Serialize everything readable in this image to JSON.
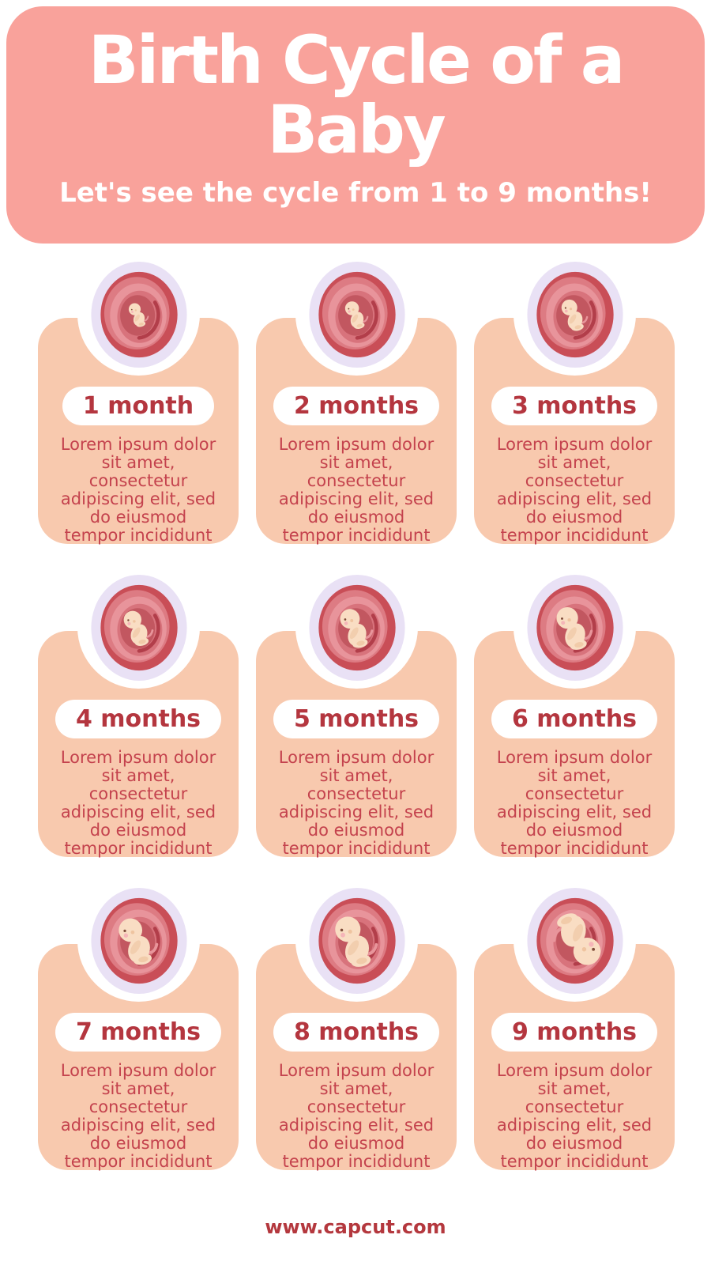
{
  "header": {
    "title": "Birth Cycle of a\nBaby",
    "subtitle": "Let's see the cycle from 1 to 9 months!"
  },
  "shared": {
    "body_text": "Lorem ipsum dolor\nsit amet,\nconsectetur\nadipiscing elit, sed\ndo eiusmod\ntempor incididunt"
  },
  "cards": [
    {
      "label": "1 month",
      "illustration": "fetus-in-womb-month-1"
    },
    {
      "label": "2 months",
      "illustration": "fetus-in-womb-month-2"
    },
    {
      "label": "3 months",
      "illustration": "fetus-in-womb-month-3"
    },
    {
      "label": "4 months",
      "illustration": "fetus-in-womb-month-4"
    },
    {
      "label": "5 months",
      "illustration": "fetus-in-womb-month-5"
    },
    {
      "label": "6 months",
      "illustration": "fetus-in-womb-month-6"
    },
    {
      "label": "7 months",
      "illustration": "fetus-in-womb-month-7"
    },
    {
      "label": "8 months",
      "illustration": "fetus-in-womb-month-8"
    },
    {
      "label": "9 months",
      "illustration": "fetus-in-womb-month-9"
    }
  ],
  "footer": {
    "website": "www.capcut.com"
  },
  "colors": {
    "header_bg": "#F9A29B",
    "card_bg": "#F8C9AE",
    "title_text": "#FFFFFF",
    "accent_red": "#B4363F",
    "body_red": "#C4424D",
    "medallion_ring": "#E9E1F5",
    "womb_red": "#C94E57",
    "fetus_skin": "#F9DDC3"
  }
}
